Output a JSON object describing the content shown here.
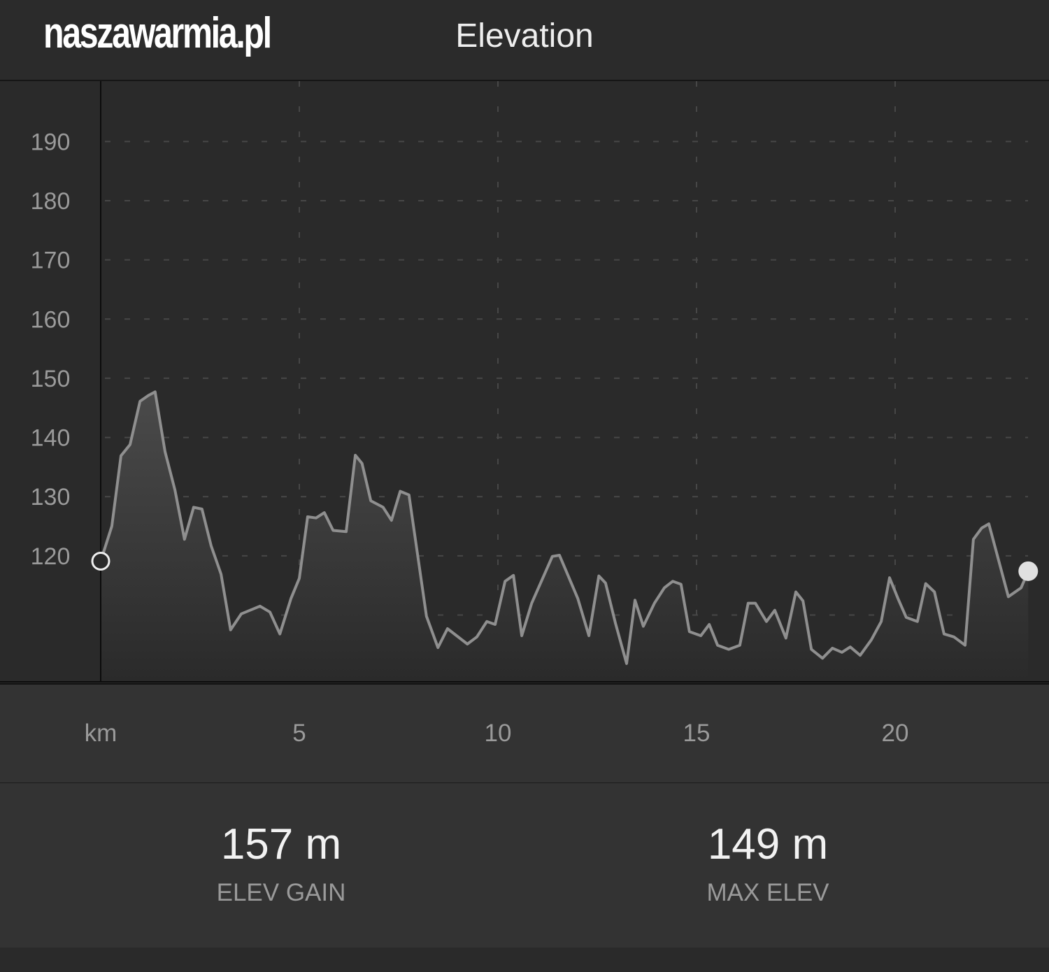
{
  "header": {
    "logo": "naszawarmia.pl",
    "title": "Elevation"
  },
  "stats": [
    {
      "value": "157 m",
      "label": "ELEV GAIN"
    },
    {
      "value": "149 m",
      "label": "MAX ELEV"
    }
  ],
  "colors": {
    "line": "#8f8f8f",
    "background": "#2a2a2a",
    "band": "#333333"
  },
  "chart_data": {
    "type": "area",
    "title": "Elevation",
    "xlabel": "km",
    "ylabel": "",
    "x_unit_label": "km",
    "xlim": [
      0,
      23.9
    ],
    "ylim": [
      98.6,
      200.2
    ],
    "x_ticks": [
      5,
      10,
      15,
      20
    ],
    "x_tick_labels": [
      "5",
      "10",
      "15",
      "20"
    ],
    "y_ticks": [
      120,
      130,
      140,
      150,
      160,
      170,
      180,
      190
    ],
    "y_tick_labels": [
      "120",
      "130",
      "140",
      "150",
      "160",
      "170",
      "180",
      "190"
    ],
    "y_gridlines": [
      100,
      110,
      120,
      130,
      140,
      150,
      160,
      170,
      180,
      190
    ],
    "grid": true,
    "x": [
      0,
      0.28,
      0.51,
      0.74,
      0.99,
      1.2,
      1.37,
      1.62,
      1.87,
      2.11,
      2.34,
      2.55,
      2.78,
      3.03,
      3.27,
      3.54,
      4.01,
      4.26,
      4.51,
      4.79,
      5.0,
      5.21,
      5.42,
      5.63,
      5.85,
      6.18,
      6.41,
      6.58,
      6.8,
      7.11,
      7.32,
      7.54,
      7.76,
      8.2,
      8.49,
      8.73,
      9.23,
      9.47,
      9.72,
      9.93,
      10.18,
      10.39,
      10.6,
      10.85,
      11.37,
      11.55,
      12.01,
      12.29,
      12.54,
      12.71,
      12.96,
      13.24,
      13.45,
      13.66,
      13.94,
      14.19,
      14.4,
      14.61,
      14.82,
      15.11,
      15.32,
      15.53,
      15.81,
      16.09,
      16.3,
      16.48,
      16.76,
      16.97,
      17.25,
      17.5,
      17.68,
      17.89,
      18.17,
      18.42,
      18.66,
      18.87,
      19.12,
      19.4,
      19.65,
      19.86,
      20.07,
      20.28,
      20.56,
      20.77,
      20.99,
      21.23,
      21.48,
      21.76,
      21.97,
      22.18,
      22.36,
      22.85,
      23.17,
      23.35
    ],
    "y": [
      119.1,
      125,
      136.9,
      138.8,
      146.1,
      147.1,
      147.7,
      137.6,
      131.1,
      122.8,
      128.2,
      127.9,
      121.7,
      116.9,
      107.5,
      110.2,
      111.5,
      110.5,
      106.8,
      112.8,
      116.2,
      126.6,
      126.4,
      127.3,
      124.3,
      124.1,
      137,
      135.6,
      129.3,
      128.2,
      126,
      130.9,
      130.3,
      109.8,
      104.5,
      107.7,
      105.1,
      106.3,
      108.9,
      108.4,
      115.7,
      116.7,
      106.5,
      112,
      119.9,
      120.1,
      112.8,
      106.5,
      116.6,
      115.4,
      108.6,
      101.8,
      112.5,
      108.1,
      112,
      114.6,
      115.7,
      115.2,
      107.2,
      106.5,
      108.4,
      104.9,
      104.2,
      104.9,
      112,
      112,
      108.9,
      110.8,
      106.1,
      113.9,
      112.4,
      104.2,
      102.7,
      104.4,
      103.7,
      104.6,
      103.2,
      105.8,
      108.9,
      116.3,
      112.8,
      109.6,
      108.9,
      115.3,
      113.9,
      106.8,
      106.3,
      104.9,
      122.8,
      124.7,
      125.4,
      113.1,
      114.6,
      117.4
    ]
  }
}
